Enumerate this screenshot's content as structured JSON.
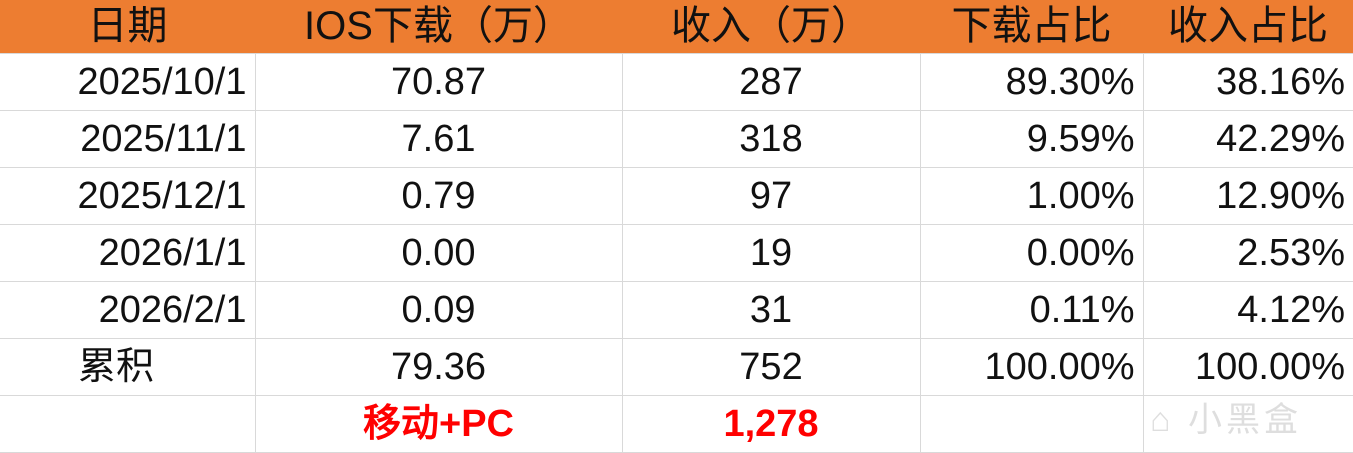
{
  "headers": [
    "日期",
    "IOS下载（万）",
    "收入（万）",
    "下载占比",
    "收入占比"
  ],
  "rows": [
    [
      "2025/10/1",
      "70.87",
      "287",
      "89.30%",
      "38.16%"
    ],
    [
      "2025/11/1",
      "7.61",
      "318",
      "9.59%",
      "42.29%"
    ],
    [
      "2025/12/1",
      "0.79",
      "97",
      "1.00%",
      "12.90%"
    ],
    [
      "2026/1/1",
      "0.00",
      "19",
      "0.00%",
      "2.53%"
    ],
    [
      "2026/2/1",
      "0.09",
      "31",
      "0.11%",
      "4.12%"
    ]
  ],
  "total": [
    "累积",
    "79.36",
    "752",
    "100.00%",
    "100.00%"
  ],
  "extra": {
    "label": "移动+PC",
    "value": "1,278"
  },
  "watermark": "小黑盒",
  "colors": {
    "header_bg": "#ED7D31",
    "highlight": "#FF0000"
  }
}
